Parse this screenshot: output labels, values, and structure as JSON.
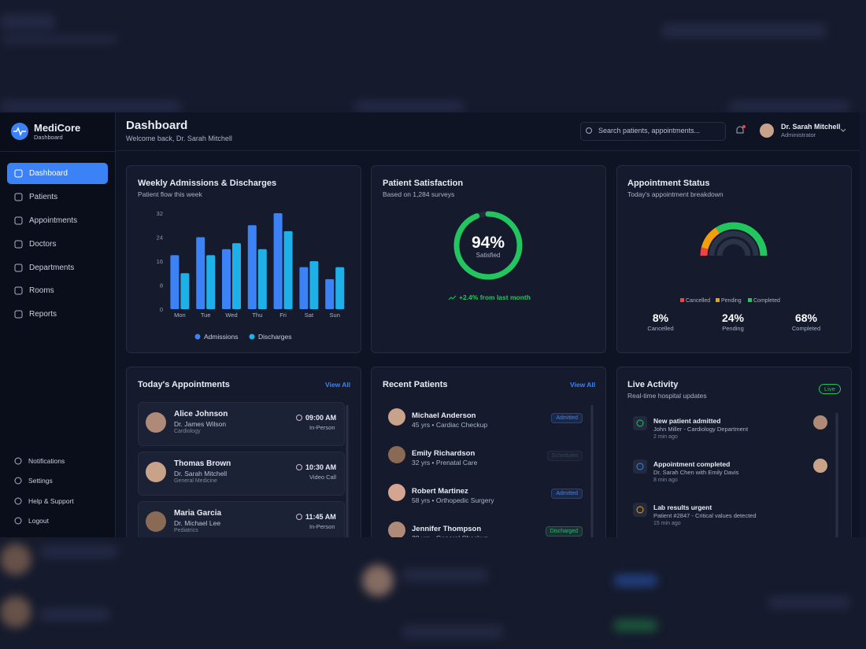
{
  "brand": {
    "name": "MediCore",
    "subtitle": "Dashboard"
  },
  "nav": [
    "Dashboard",
    "Patients",
    "Appointments",
    "Doctors",
    "Departments",
    "Rooms",
    "Reports"
  ],
  "nav_bottom": [
    "Notifications",
    "Settings",
    "Help & Support",
    "Logout"
  ],
  "header": {
    "title": "Dashboard",
    "subtitle": "Welcome back, Dr. Sarah Mitchell",
    "search_placeholder": "Search patients, appointments...",
    "user_name": "Dr. Sarah Mitchell",
    "user_role": "Administrator"
  },
  "admissions_chart": {
    "type": "bar",
    "title": "Weekly Admissions & Discharges",
    "subtitle": "Patient flow this week",
    "categories": [
      "Mon",
      "Tue",
      "Wed",
      "Thu",
      "Fri",
      "Sat",
      "Sun"
    ],
    "series": [
      {
        "name": "Admissions",
        "color": "#3b82f6",
        "values": [
          18,
          24,
          20,
          28,
          32,
          14,
          10
        ]
      },
      {
        "name": "Discharges",
        "color": "#1eb0e8",
        "values": [
          12,
          18,
          22,
          20,
          26,
          16,
          14
        ]
      }
    ],
    "ylim": [
      0,
      32
    ],
    "yticks": [
      0,
      8,
      16,
      24,
      32
    ]
  },
  "satisfaction": {
    "type": "donut",
    "title": "Patient Satisfaction",
    "subtitle": "Based on 1,284 surveys",
    "value": 94,
    "value_label": "94%",
    "caption": "Satisfied",
    "color": "#22c55e",
    "trend": "+2.4% from last month"
  },
  "appointment_status": {
    "type": "gauge",
    "title": "Appointment Status",
    "subtitle": "Today's appointment breakdown",
    "series": [
      {
        "name": "Cancelled",
        "color": "#ef4444",
        "value": 8,
        "value_label": "8%"
      },
      {
        "name": "Pending",
        "color": "#f59e0b",
        "value": 24,
        "value_label": "24%"
      },
      {
        "name": "Completed",
        "color": "#22c55e",
        "value": 68,
        "value_label": "68%"
      }
    ]
  },
  "appointments": {
    "title": "Today's Appointments",
    "action": "View All",
    "rows": [
      {
        "name": "Alice Johnson",
        "doctor": "Dr. James Wilson",
        "department": "Cardiology",
        "time": "09:00 AM",
        "mode": "In-Person"
      },
      {
        "name": "Thomas Brown",
        "doctor": "Dr. Sarah Mitchell",
        "department": "General Medicine",
        "time": "10:30 AM",
        "mode": "Video Call"
      },
      {
        "name": "Maria Garcia",
        "doctor": "Dr. Michael Lee",
        "department": "Pediatrics",
        "time": "11:45 AM",
        "mode": "In-Person"
      }
    ]
  },
  "recent_patients": {
    "title": "Recent Patients",
    "action": "View All",
    "rows": [
      {
        "name": "Michael Anderson",
        "detail": "45 yrs • Cardiac Checkup",
        "status": "Admitted",
        "status_color": "#3b82f6"
      },
      {
        "name": "Emily Richardson",
        "detail": "32 yrs • Prenatal Care",
        "status": "Scheduled",
        "status_color": "#3a4258"
      },
      {
        "name": "Robert Martinez",
        "detail": "58 yrs • Orthopedic Surgery",
        "status": "Admitted",
        "status_color": "#3b82f6"
      },
      {
        "name": "Jennifer Thompson",
        "detail": "28 yrs • General Checkup",
        "status": "Discharged",
        "status_color": "#22c55e"
      }
    ]
  },
  "live_activity": {
    "title": "Live Activity",
    "subtitle": "Real-time hospital updates",
    "badge": "Live",
    "items": [
      {
        "title": "New patient admitted",
        "detail": "John Miller - Cardiology Department",
        "time": "2 min ago",
        "icon_color": "#22c55e"
      },
      {
        "title": "Appointment completed",
        "detail": "Dr. Sarah Chen with Emily Davis",
        "time": "8 min ago",
        "icon_color": "#3b82f6"
      },
      {
        "title": "Lab results urgent",
        "detail": "Patient #2847 - Critical values detected",
        "time": "15 min ago",
        "icon_color": "#f59e0b"
      }
    ]
  }
}
